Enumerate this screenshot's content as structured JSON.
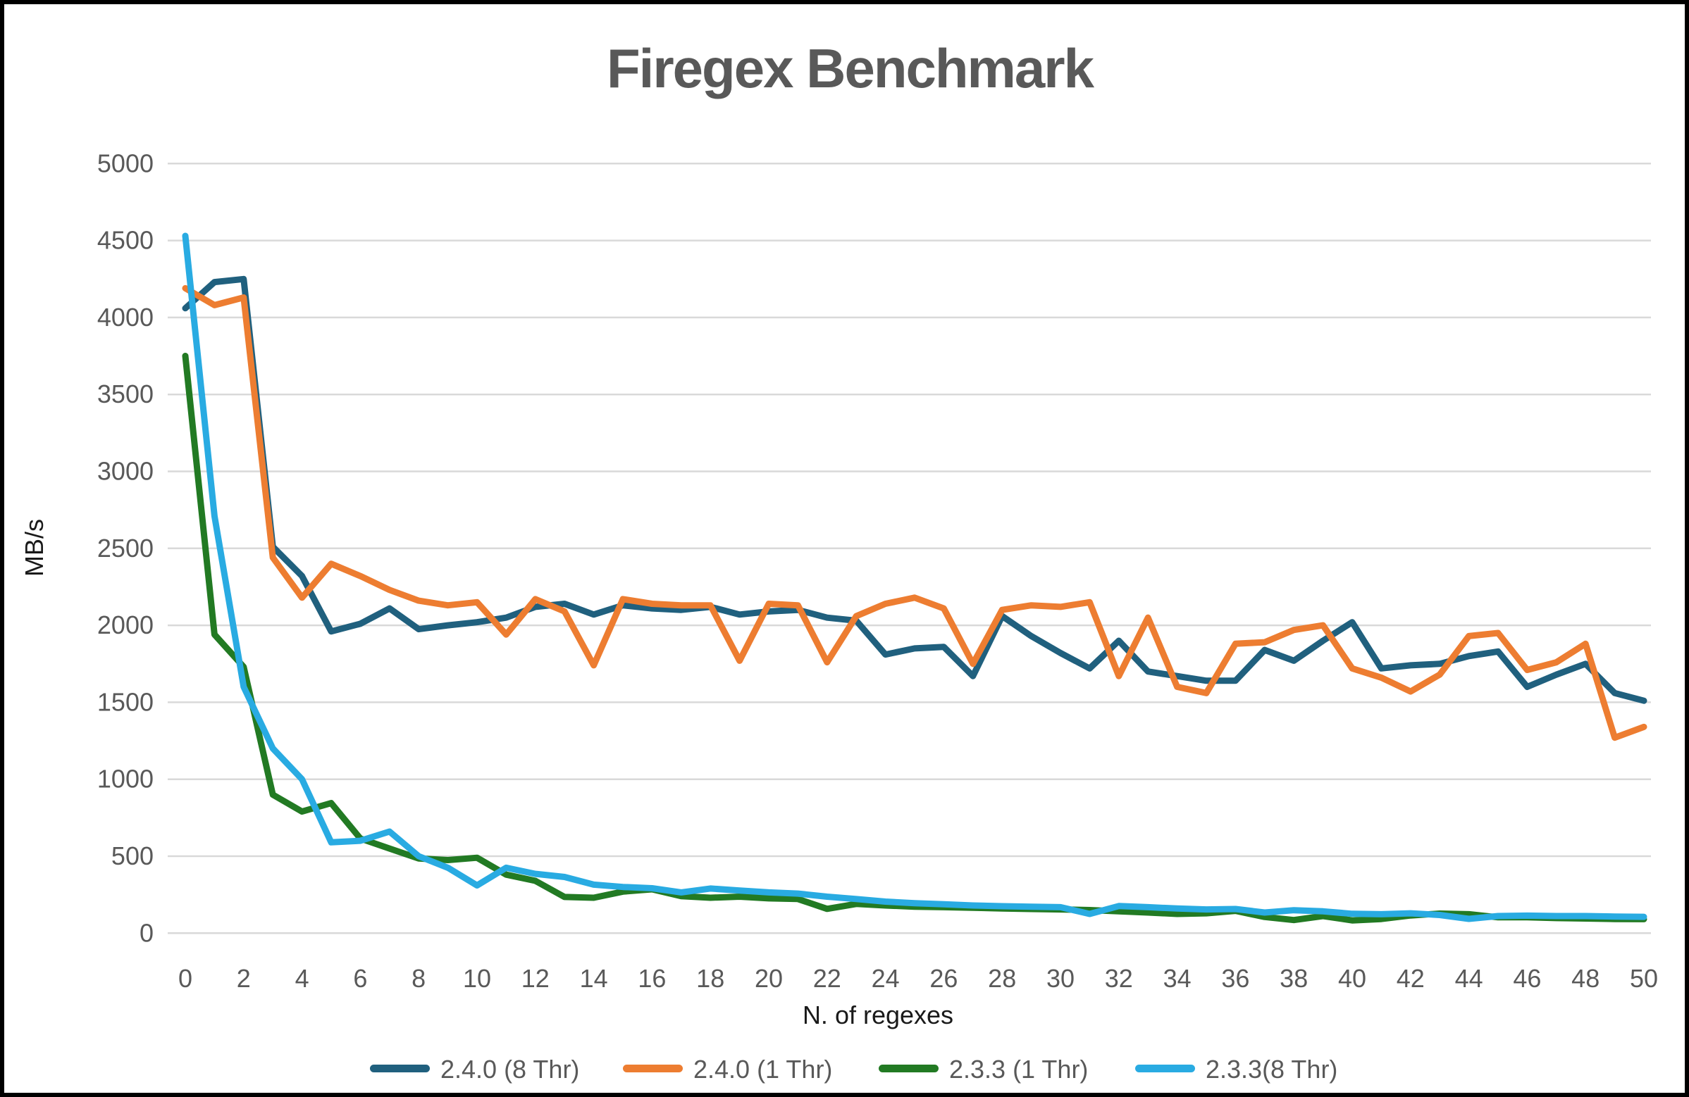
{
  "window": {
    "background": "#ffffff",
    "border_color": "#000000"
  },
  "chart_data": {
    "type": "line",
    "title": "Firegex Benchmark",
    "xlabel": "N. of regexes",
    "ylabel": "MB/s",
    "xlim": [
      0,
      50
    ],
    "ylim": [
      0,
      5000
    ],
    "y_tick_step": 500,
    "x_tick_step": 2,
    "grid": "horizontal",
    "legend_position": "bottom",
    "x": [
      0,
      1,
      2,
      3,
      4,
      5,
      6,
      7,
      8,
      9,
      10,
      11,
      12,
      13,
      14,
      15,
      16,
      17,
      18,
      19,
      20,
      21,
      22,
      23,
      24,
      25,
      26,
      27,
      28,
      29,
      30,
      31,
      32,
      33,
      34,
      35,
      36,
      37,
      38,
      39,
      40,
      41,
      42,
      43,
      44,
      45,
      46,
      47,
      48,
      49,
      50
    ],
    "series": [
      {
        "name": "2.4.0 (8 Thr)",
        "color": "#20607E",
        "values": [
          4060,
          4230,
          4250,
          2510,
          2320,
          1960,
          2010,
          2110,
          1975,
          2000,
          2020,
          2050,
          2120,
          2140,
          2070,
          2130,
          2110,
          2100,
          2120,
          2070,
          2090,
          2100,
          2050,
          2030,
          1810,
          1850,
          1860,
          1670,
          2060,
          1930,
          1820,
          1720,
          1900,
          1700,
          1670,
          1640,
          1640,
          1840,
          1770,
          1900,
          2020,
          1720,
          1740,
          1750,
          1800,
          1830,
          1600,
          1680,
          1750,
          1560,
          1510
        ]
      },
      {
        "name": "2.4.0 (1 Thr)",
        "color": "#ED7D31",
        "values": [
          4190,
          4080,
          4130,
          2440,
          2180,
          2400,
          2320,
          2230,
          2160,
          2130,
          2150,
          1940,
          2170,
          2090,
          1740,
          2170,
          2140,
          2130,
          2130,
          1770,
          2140,
          2130,
          1760,
          2060,
          2140,
          2180,
          2110,
          1750,
          2100,
          2130,
          2120,
          2150,
          1670,
          2050,
          1600,
          1560,
          1880,
          1890,
          1970,
          2000,
          1720,
          1660,
          1570,
          1680,
          1930,
          1950,
          1710,
          1760,
          1880,
          1270,
          1340
        ]
      },
      {
        "name": "2.3.3 (1 Thr)",
        "color": "#227A23",
        "values": [
          3750,
          1940,
          1730,
          900,
          790,
          845,
          615,
          550,
          485,
          475,
          490,
          380,
          340,
          235,
          230,
          270,
          285,
          240,
          230,
          237,
          226,
          222,
          158,
          190,
          180,
          172,
          169,
          165,
          160,
          157,
          154,
          150,
          142,
          134,
          125,
          129,
          145,
          105,
          85,
          111,
          83,
          92,
          115,
          127,
          123,
          103,
          103,
          98,
          95,
          92,
          91
        ]
      },
      {
        "name": "2.3.3(8 Thr)",
        "color": "#29ABE2",
        "values": [
          4530,
          2710,
          1600,
          1200,
          1000,
          590,
          600,
          660,
          500,
          425,
          310,
          425,
          385,
          365,
          315,
          300,
          292,
          265,
          290,
          277,
          265,
          257,
          237,
          222,
          205,
          195,
          188,
          180,
          175,
          172,
          169,
          125,
          176,
          169,
          160,
          154,
          157,
          134,
          149,
          142,
          126,
          123,
          129,
          118,
          93,
          111,
          114,
          111,
          111,
          108,
          106
        ]
      }
    ],
    "styles": {
      "grid_color": "#D9D9D9",
      "tick_label_color": "#595959",
      "title_color": "#595959",
      "axis_title_color": "#1a1a1a",
      "legend_label_color": "#595959",
      "line_width": 9
    }
  }
}
